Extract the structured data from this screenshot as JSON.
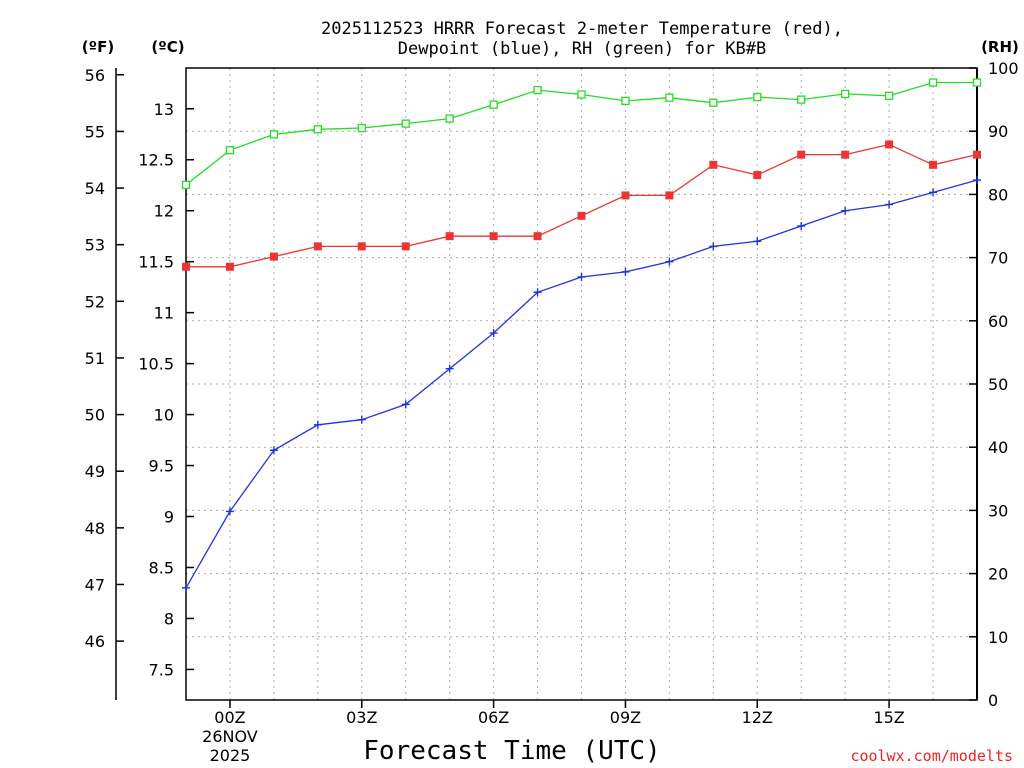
{
  "chart_data": {
    "type": "line",
    "title_line1": "2025112523 HRRR Forecast 2-meter Temperature (red),",
    "title_line2": "Dewpoint (blue), RH (green) for KB#B",
    "xlabel": "Forecast Time (UTC)",
    "credit": "coolwx.com/modelts",
    "unit_f": "(ºF)",
    "unit_c": "(ºC)",
    "unit_rh": "(RH)",
    "x": [
      -1,
      0,
      1,
      2,
      3,
      4,
      5,
      6,
      7,
      8,
      9,
      10,
      11,
      12,
      13,
      14,
      15,
      16,
      17
    ],
    "xlim": [
      -1,
      17
    ],
    "x_ticks": [
      {
        "x": 0,
        "label": "00Z",
        "sub1": "26NOV",
        "sub2": "2025"
      },
      {
        "x": 3,
        "label": "03Z"
      },
      {
        "x": 6,
        "label": "06Z"
      },
      {
        "x": 9,
        "label": "09Z"
      },
      {
        "x": 12,
        "label": "12Z"
      },
      {
        "x": 15,
        "label": "15Z"
      }
    ],
    "ylim_c": [
      7.2,
      13.4
    ],
    "ylim_rh": [
      0,
      100
    ],
    "f_ticks": [
      "46",
      "47",
      "48",
      "49",
      "50",
      "51",
      "52",
      "53",
      "54",
      "55",
      "56"
    ],
    "c_ticks": [
      "7.5",
      "8",
      "8.5",
      "9",
      "9.5",
      "10",
      "10.5",
      "11",
      "11.5",
      "12",
      "12.5",
      "13"
    ],
    "rh_ticks": [
      "0",
      "10",
      "20",
      "30",
      "40",
      "50",
      "60",
      "70",
      "80",
      "90",
      "100"
    ],
    "series": [
      {
        "name": "Temperature",
        "color": "#ee3333",
        "marker": "filled-square",
        "values_c": [
          11.45,
          11.45,
          11.55,
          11.65,
          11.65,
          11.65,
          11.75,
          11.75,
          11.75,
          11.95,
          12.15,
          12.15,
          12.45,
          12.35,
          12.55,
          12.55,
          12.65,
          12.45,
          12.55
        ]
      },
      {
        "name": "Dewpoint",
        "color": "#2233dd",
        "marker": "plus",
        "values_c": [
          8.3,
          9.05,
          9.65,
          9.9,
          9.95,
          10.1,
          10.45,
          10.8,
          11.2,
          11.35,
          11.4,
          11.5,
          11.65,
          11.7,
          11.85,
          12.0,
          12.06,
          12.18,
          12.3
        ]
      },
      {
        "name": "RH",
        "color": "#22dd22",
        "marker": "open-square",
        "values_rh": [
          81.5,
          87,
          89.5,
          90.3,
          90.5,
          91.2,
          92,
          94.2,
          96.5,
          95.8,
          94.8,
          95.3,
          94.5,
          95.4,
          95,
          95.9,
          95.6,
          97.7,
          97.7
        ]
      }
    ]
  }
}
